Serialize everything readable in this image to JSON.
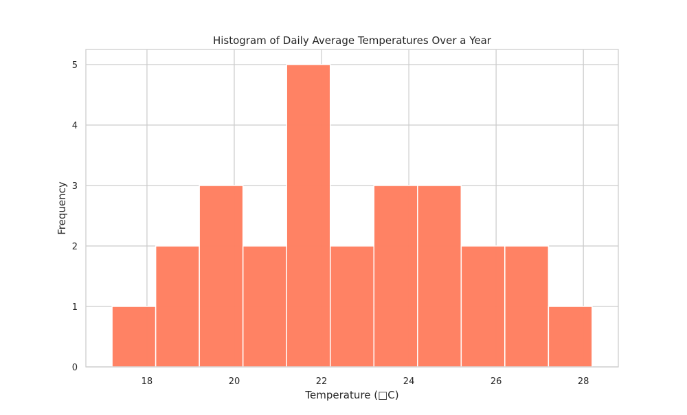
{
  "chart_data": {
    "type": "bar",
    "title": "Histogram of Daily Average Temperatures Over a Year",
    "xlabel": "Temperature (□C)",
    "ylabel": "Frequency",
    "bins": [
      [
        17.2,
        18.2
      ],
      [
        18.2,
        19.2
      ],
      [
        19.2,
        20.2
      ],
      [
        20.2,
        21.2
      ],
      [
        21.2,
        22.2
      ],
      [
        22.2,
        23.2
      ],
      [
        23.2,
        24.2
      ],
      [
        24.2,
        25.2
      ],
      [
        25.2,
        26.2
      ],
      [
        26.2,
        27.2
      ],
      [
        27.2,
        28.2
      ]
    ],
    "values": [
      1,
      2,
      3,
      2,
      5,
      2,
      3,
      3,
      2,
      2,
      1
    ],
    "xlim": [
      16.6,
      28.8
    ],
    "ylim": [
      0,
      5.25
    ],
    "xticks": [
      18,
      20,
      22,
      24,
      26,
      28
    ],
    "yticks": [
      0,
      1,
      2,
      3,
      4,
      5
    ],
    "grid": true,
    "bar_color": "#ff7f61",
    "edge_color": "#ffffff"
  }
}
